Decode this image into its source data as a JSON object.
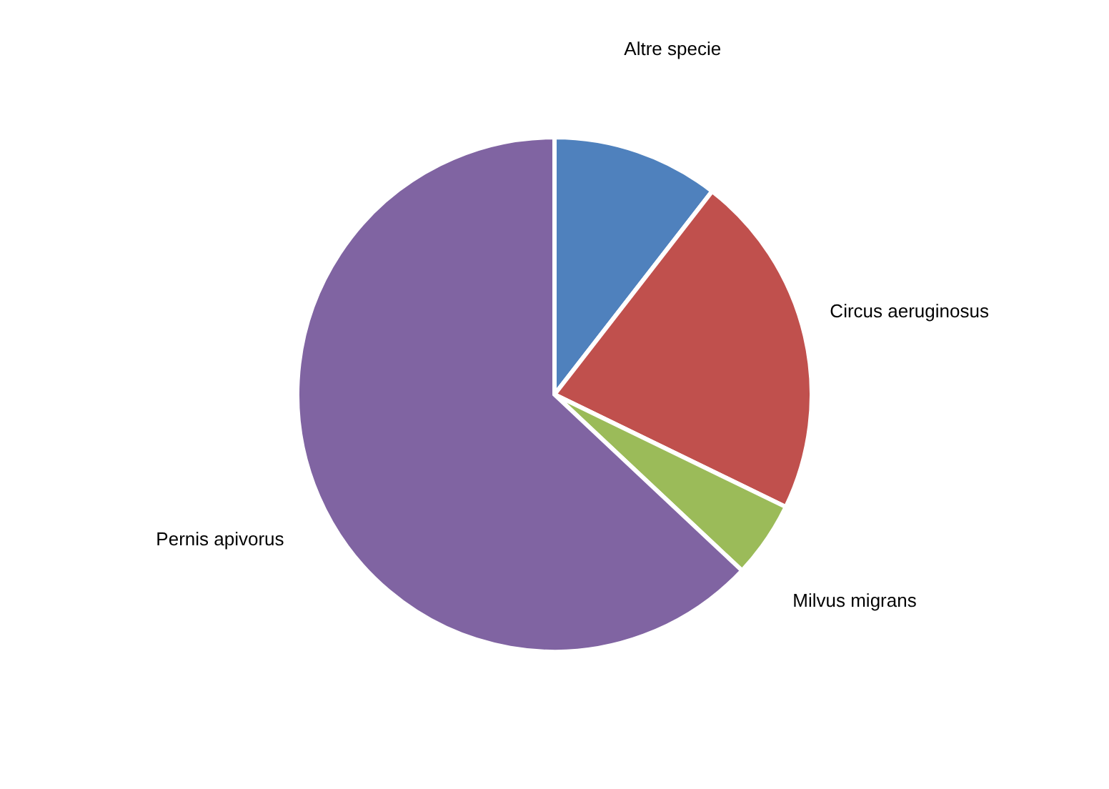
{
  "chart_data": {
    "type": "pie",
    "categories": [
      "Altre specie",
      "Circus aeruginosus",
      "Milvus migrans",
      "Pernis apivorus"
    ],
    "values": [
      10.5,
      21.7,
      4.8,
      63
    ],
    "colors": [
      "#4f81bd",
      "#c0504d",
      "#9bbb59",
      "#8064a2"
    ],
    "legend": false
  }
}
